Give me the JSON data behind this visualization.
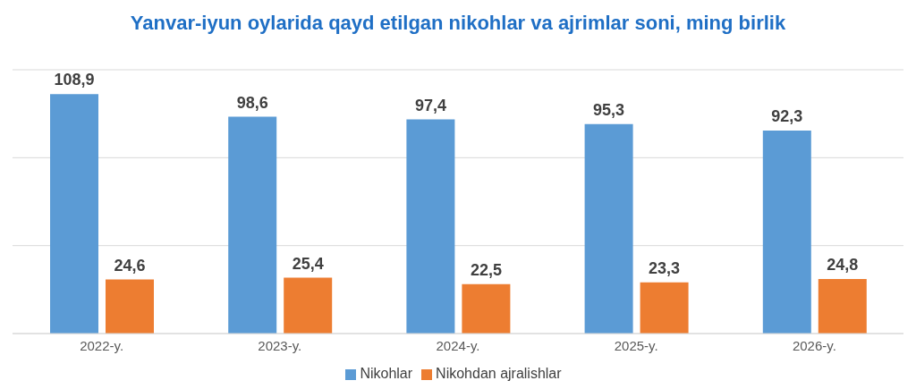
{
  "chart_data": {
    "type": "bar",
    "title": "Yanvar-iyun oylarida qayd etilgan nikohlar va ajrimlar soni, ming birlik",
    "categories": [
      "2022-y.",
      "2023-y.",
      "2024-y.",
      "2025-y.",
      "2026-y."
    ],
    "series": [
      {
        "name": "Nikohlar",
        "color": "#5b9bd5",
        "values": [
          108.9,
          98.6,
          97.4,
          95.3,
          92.3
        ],
        "value_labels": [
          "108,9",
          "98,6",
          "97,4",
          "95,3",
          "92,3"
        ]
      },
      {
        "name": "Nikohdan ajralishlar",
        "color": "#ed7d31",
        "values": [
          24.6,
          25.4,
          22.5,
          23.3,
          24.8
        ],
        "value_labels": [
          "24,6",
          "25,4",
          "22,5",
          "23,3",
          "24,8"
        ]
      }
    ],
    "ylim": [
      0,
      120
    ],
    "yticks": [
      {
        "value": 0,
        "label": null
      },
      {
        "value": 40,
        "label": null
      },
      {
        "value": 80,
        "label": null
      },
      {
        "value": 120,
        "label": null
      }
    ],
    "tick_labels": "x",
    "grid": "y",
    "legend": "bottom"
  }
}
